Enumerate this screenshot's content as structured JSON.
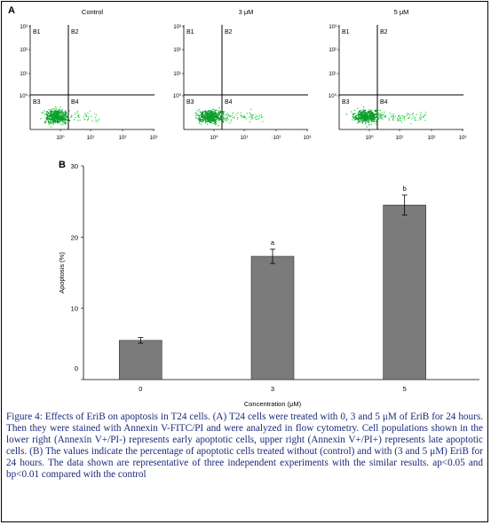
{
  "panel_a": {
    "label": "A",
    "plots": [
      {
        "title": "Control",
        "y_ticks": [
          "10³",
          "10²",
          "10¹",
          "10⁰"
        ],
        "x_ticks": [
          "10⁰",
          "10¹",
          "10²",
          "10³"
        ],
        "quadrants": [
          "B1",
          "B2",
          "B3",
          "B4"
        ]
      },
      {
        "title": "3 μM",
        "y_ticks": [
          "10³",
          "10²",
          "10¹",
          "10⁰"
        ],
        "x_ticks": [
          "10⁰",
          "10¹",
          "·10²",
          "10³"
        ],
        "quadrants": [
          "B1",
          "B2",
          "B3",
          "B4"
        ]
      },
      {
        "title": "5 μM",
        "y_ticks": [
          "10³",
          "10²",
          "10¹",
          "10⁰"
        ],
        "x_ticks": [
          "10⁰",
          "10¹",
          "10²",
          "10³"
        ],
        "quadrants": [
          "B1",
          "B2",
          "B3",
          "B4"
        ]
      }
    ],
    "colors": {
      "dots": "#22cc44",
      "dots_dense": "#0aa02a"
    }
  },
  "panel_b": {
    "label": "B",
    "chart_data": {
      "type": "bar",
      "categories": [
        "0",
        "3",
        "5"
      ],
      "values": [
        5.5,
        17.3,
        24.5
      ],
      "errors": [
        0.4,
        1.0,
        1.4
      ],
      "annotations": [
        "",
        "a",
        "b"
      ],
      "ylabel": "Apoptosis (%)",
      "xlabel": "Concentration (μM)",
      "ylim": [
        0,
        30
      ],
      "yticks": [
        "0",
        "10",
        "20",
        "30"
      ],
      "bar_color": "#7b7b7b"
    }
  },
  "caption": "Figure 4: Effects of EriB on apoptosis in T24 cells. (A) T24 cells were treated with 0, 3 and 5 μM of EriB for 24 hours. Then they were stained with Annexin V-FITC/PI and were analyzed in flow cytometry. Cell populations shown in the lower right (Annexin V+/PI-) represents early apoptotic cells, upper right (Annexin V+/PI+) represents late apoptotic cells. (B) The values indicate the percentage of apoptotic cells treated without (control) and with (3 and 5 μM) EriB for 24 hours. The data shown are representative of three independent experiments with the similar results. ap<0.05 and bp<0.01 compared with the control"
}
